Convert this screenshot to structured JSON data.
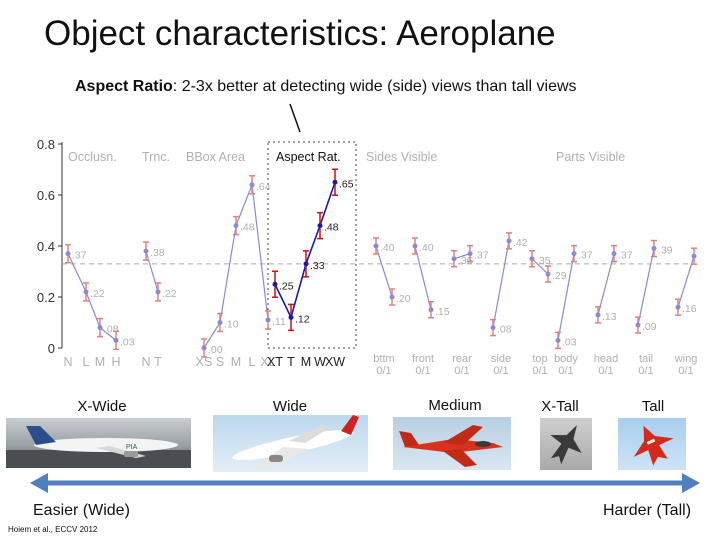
{
  "slide": {
    "title": "Object characteristics: Aeroplane",
    "subtitle_bold": "Aspect Ratio",
    "subtitle_rest": ": 2-3x better at detecting wide (side) views than tall views",
    "citation": "Hoiem et al., ECCV 2012"
  },
  "aspect_labels": [
    "X-Wide",
    "Wide",
    "Medium",
    "X-Tall",
    "Tall"
  ],
  "arrow": {
    "left_label": "Easier (Wide)",
    "right_label": "Harder (Tall)",
    "color": "#4f7fc1"
  },
  "chart_data": {
    "type": "line",
    "ylim": [
      0,
      0.8
    ],
    "yticks": [
      "0",
      "0.2",
      "0.4",
      "0.6",
      "0.8"
    ],
    "highlight_panel": 3,
    "panels": [
      {
        "name": "Occlusn.",
        "categories": [
          "N",
          "L",
          "M",
          "H"
        ],
        "values": [
          0.37,
          0.22,
          0.08,
          0.03
        ]
      },
      {
        "name": "Trnc.",
        "categories": [
          "N",
          "T"
        ],
        "values": [
          0.38,
          0.22
        ]
      },
      {
        "name": "BBox Area",
        "categories": [
          "XS",
          "S",
          "M",
          "L",
          "XL"
        ],
        "values": [
          0.0,
          0.1,
          0.48,
          0.64,
          0.11
        ]
      },
      {
        "name": "Aspect Rat.",
        "categories": [
          "XT",
          "T",
          "M",
          "W",
          "XW"
        ],
        "values": [
          0.25,
          0.12,
          0.33,
          0.48,
          0.65
        ]
      },
      {
        "name": "Sides Visible",
        "pairs": [
          {
            "categories": "bttm 0/1",
            "values": [
              0.4,
              0.2
            ]
          },
          {
            "categories": "front 0/1",
            "values": [
              0.4,
              0.15
            ]
          },
          {
            "categories": "rear 0/1",
            "values": [
              0.35,
              0.37
            ]
          },
          {
            "categories": "side 0/1",
            "values": [
              0.08,
              0.42
            ]
          },
          {
            "categories": "top 0/1",
            "values": [
              0.35,
              0.29
            ]
          }
        ]
      },
      {
        "name": "Parts Visible",
        "pairs": [
          {
            "categories": "body 0/1",
            "values": [
              0.03,
              0.37
            ]
          },
          {
            "categories": "head 0/1",
            "values": [
              0.13,
              0.37
            ]
          },
          {
            "categories": "tail 0/1",
            "values": [
              0.09,
              0.39
            ]
          },
          {
            "categories": "wing 0/1",
            "values": [
              0.16,
              0.36
            ]
          }
        ]
      }
    ],
    "dashed_line_value": 0.33,
    "colors": {
      "line": "#8a8ad6",
      "line_highlight": "#1a1aa8",
      "error": "#e08080",
      "error_highlight": "#cc1111",
      "label": "#b0b0b0",
      "label_highlight": "#222222"
    }
  }
}
